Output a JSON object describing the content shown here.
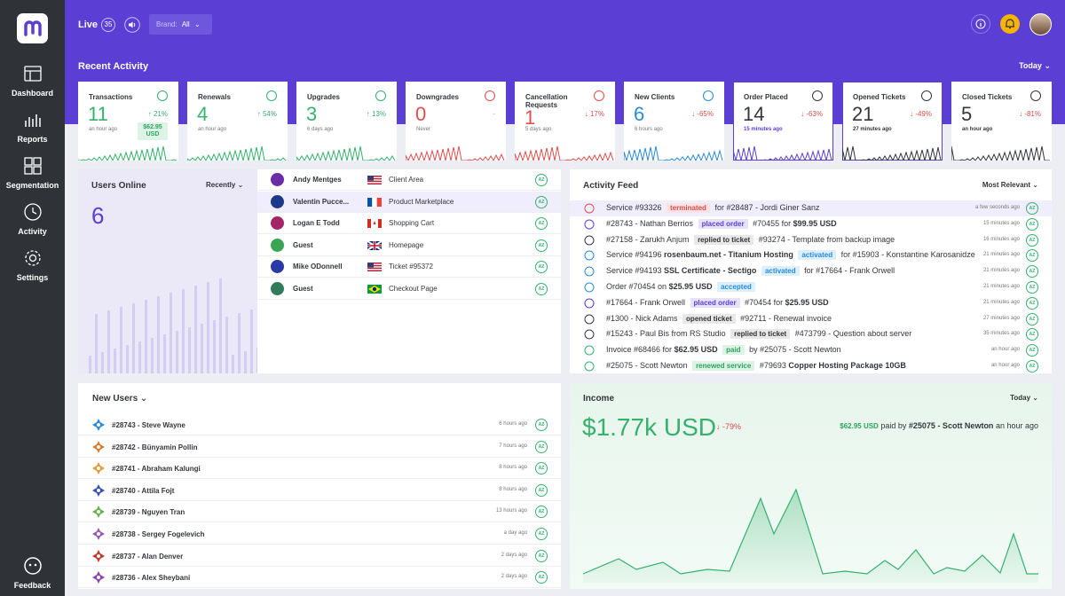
{
  "sidebar": {
    "items": [
      {
        "label": "Dashboard",
        "icon": "dashboard-icon"
      },
      {
        "label": "Reports",
        "icon": "reports-icon"
      },
      {
        "label": "Segmentation",
        "icon": "segmentation-icon"
      },
      {
        "label": "Activity",
        "icon": "activity-icon"
      },
      {
        "label": "Settings",
        "icon": "settings-icon"
      }
    ],
    "feedback_label": "Feedback"
  },
  "header": {
    "live_label": "Live",
    "live_count": "35",
    "brand_label": "Brand:",
    "brand_value": "All"
  },
  "recent_activity": {
    "title": "Recent Activity",
    "range": "Today",
    "cards": [
      {
        "title": "Transactions",
        "value": "11",
        "pct": "21%",
        "time": "an hour ago",
        "tag": "$62.95 USD",
        "trend": "up"
      },
      {
        "title": "Renewals",
        "value": "4",
        "pct": "54%",
        "time": "an hour ago",
        "trend": "up"
      },
      {
        "title": "Upgrades",
        "value": "3",
        "pct": "13%",
        "time": "6 days ago",
        "trend": "up"
      },
      {
        "title": "Downgrades",
        "value": "0",
        "pct": "-",
        "time": "Never",
        "trend": "none"
      },
      {
        "title": "Cancellation Requests",
        "value": "1",
        "pct": "17%",
        "time": "5 days ago",
        "trend": "down"
      },
      {
        "title": "New Clients",
        "value": "6",
        "pct": "-65%",
        "time": "6 hours ago",
        "trend": "down"
      },
      {
        "title": "Order Placed",
        "value": "14",
        "pct": "-63%",
        "time": "15 minutes ago",
        "trend": "down"
      },
      {
        "title": "Opened Tickets",
        "value": "21",
        "pct": "-49%",
        "time": "27 minutes ago",
        "trend": "down"
      },
      {
        "title": "Closed Tickets",
        "value": "5",
        "pct": "-81%",
        "time": "an hour ago",
        "trend": "down"
      }
    ]
  },
  "users_online": {
    "title": "Users Online",
    "filter": "Recently",
    "count": "6",
    "users": [
      {
        "name": "Andy Mentges",
        "page": "Client Area",
        "flag": "us"
      },
      {
        "name": "Valentin Pucce...",
        "page": "Product Marketplace",
        "flag": "fr"
      },
      {
        "name": "Logan E Todd",
        "page": "Shopping Cart",
        "flag": "ca"
      },
      {
        "name": "Guest",
        "page": "Homepage",
        "flag": "gb"
      },
      {
        "name": "Mike ODonnell",
        "page": "Ticket #95372",
        "flag": "us"
      },
      {
        "name": "Guest",
        "page": "Checkout Page",
        "flag": "br"
      }
    ]
  },
  "activity_feed": {
    "title": "Activity Feed",
    "filter": "Most Relevant",
    "rows": [
      {
        "parts": [
          "Service #93326 ",
          {
            "tag": "terminated",
            "cls": "tg-term"
          },
          " for #28487 - Jordi Giner Sanz"
        ],
        "time": "a few seconds ago",
        "icon": "cancel-icon"
      },
      {
        "parts": [
          "#28743 - Nathan Berrios ",
          {
            "tag": "placed order",
            "cls": "tg-placed"
          },
          " #70455 for ",
          {
            "b": "$99.95 USD"
          }
        ],
        "time": "15 minutes ago",
        "icon": "order-icon"
      },
      {
        "parts": [
          "#27158 - Zarukh Anjum ",
          {
            "tag": "replied to ticket",
            "cls": "tg-replied"
          },
          " #93274 - Template from backup image"
        ],
        "time": "16 minutes ago",
        "icon": "ticket-icon"
      },
      {
        "parts": [
          "Service #94196 ",
          {
            "b": "rosenbaum.net - Titanium Hosting"
          },
          " ",
          {
            "tag": "activated",
            "cls": "tg-act"
          },
          " for #15903 - Konstantine Karosanidze"
        ],
        "time": "21 minutes ago",
        "icon": "plus-icon"
      },
      {
        "parts": [
          "Service #94193 ",
          {
            "b": "SSL Certificate - Sectigo"
          },
          " ",
          {
            "tag": "activated",
            "cls": "tg-act"
          },
          " for #17664 - Frank Orwell"
        ],
        "time": "21 minutes ago",
        "icon": "plus-icon"
      },
      {
        "parts": [
          "Order #70454 on ",
          {
            "b": "$25.95 USD"
          },
          " ",
          {
            "tag": "accepted",
            "cls": "tg-act"
          }
        ],
        "time": "21 minutes ago",
        "icon": "order-accepted-icon"
      },
      {
        "parts": [
          "#17664 - Frank Orwell ",
          {
            "tag": "placed order",
            "cls": "tg-placed"
          },
          " #70454 for ",
          {
            "b": "$25.95 USD"
          }
        ],
        "time": "21 minutes ago",
        "icon": "order-icon"
      },
      {
        "parts": [
          "#1300 - Nick Adams ",
          {
            "tag": "opened ticket",
            "cls": "tg-replied"
          },
          " #92711 - Renewal invoice"
        ],
        "time": "27 minutes ago",
        "icon": "ticket-icon"
      },
      {
        "parts": [
          "#15243 - Paul Bis from RS Studio ",
          {
            "tag": "replied to ticket",
            "cls": "tg-replied"
          },
          " #473799 - Question about server"
        ],
        "time": "35 minutes ago",
        "icon": "ticket-icon"
      },
      {
        "parts": [
          "Invoice #68466 for ",
          {
            "b": "$62.95 USD"
          },
          " ",
          {
            "tag": "paid",
            "cls": "tg-paid"
          },
          " by #25075 - Scott Newton"
        ],
        "time": "an hour ago",
        "icon": "invoice-icon"
      },
      {
        "parts": [
          "#25075 - Scott Newton ",
          {
            "tag": "renewed service",
            "cls": "tg-paid"
          },
          " #79693 ",
          {
            "b": "Copper Hosting Package 10GB"
          }
        ],
        "time": "an hour ago",
        "icon": "renew-icon"
      }
    ]
  },
  "new_users": {
    "title": "New Users",
    "rows": [
      {
        "name": "#28743 - Steve Wayne",
        "time": "6 hours ago",
        "color": "#2a8ad6"
      },
      {
        "name": "#28742 - Bünyamin Pollin",
        "time": "7 hours ago",
        "color": "#e07a2e"
      },
      {
        "name": "#28741 - Abraham Kalungi",
        "time": "8 hours ago",
        "color": "#e69a3a"
      },
      {
        "name": "#28740 - Attila Fojt",
        "time": "8 hours ago",
        "color": "#3a4fb5"
      },
      {
        "name": "#28739 - Nguyen Tran",
        "time": "13 hours ago",
        "color": "#6ab04c"
      },
      {
        "name": "#28738 - Sergey Fogelevich",
        "time": "a day ago",
        "color": "#9b59b6"
      },
      {
        "name": "#28737 - Alan Denver",
        "time": "2 days ago",
        "color": "#c0392b"
      },
      {
        "name": "#28736 - Alex Sheybani",
        "time": "2 days ago",
        "color": "#8e44ad"
      }
    ]
  },
  "income": {
    "title": "Income",
    "filter": "Today",
    "value": "$1.77k USD",
    "pct": "-79%",
    "last_amount": "$62.95 USD",
    "last_text": "paid by",
    "last_who": "#25075 - Scott Newton",
    "last_time": "an hour ago"
  }
}
